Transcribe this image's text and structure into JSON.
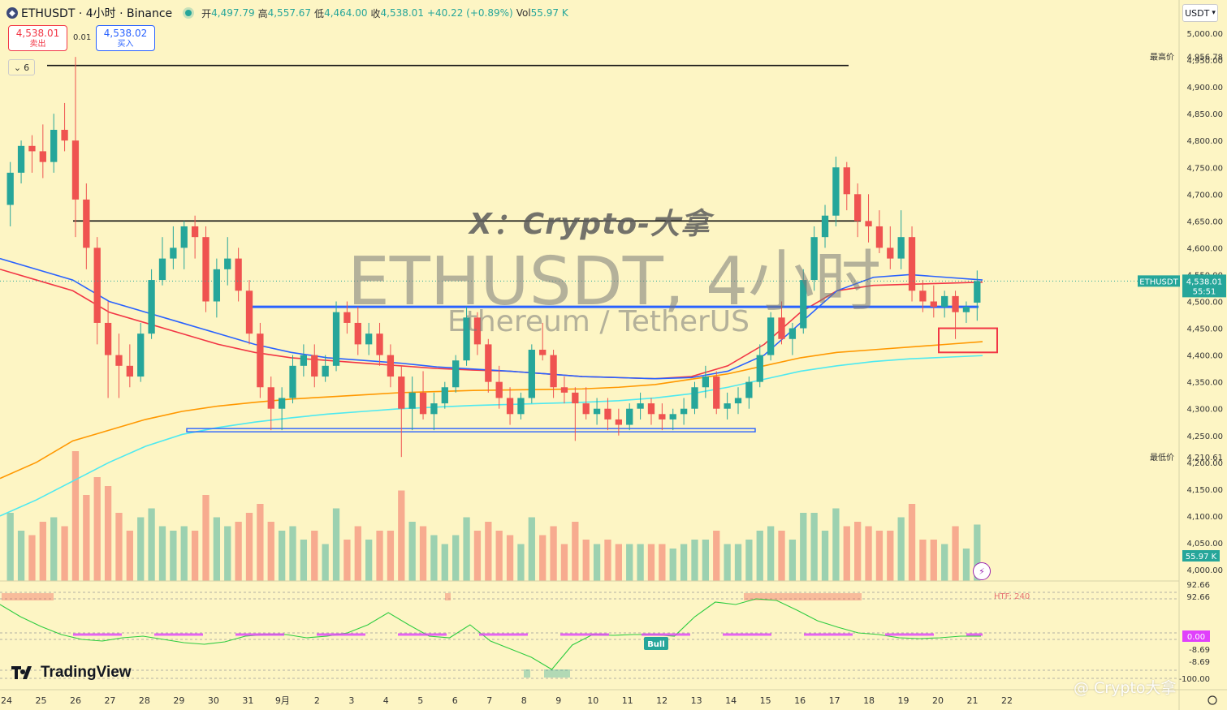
{
  "header": {
    "symbol_icon": "ethereum-logo-icon",
    "title": "ETHUSDT · 4小时 · Binance",
    "open_label": "开",
    "open": "4,497.79",
    "high_label": "高",
    "high": "4,557.67",
    "low_label": "低",
    "low": "4,464.00",
    "close_label": "收",
    "close": "4,538.01",
    "change": "+40.22 (+0.89%)",
    "vol_label": "Vol",
    "vol": "55.97 K"
  },
  "trade": {
    "sell_price": "4,538.01",
    "sell_label": "卖出",
    "spread": "0.01",
    "buy_price": "4,538.02",
    "buy_label": "买入"
  },
  "indicator_collapse": {
    "count": "6",
    "icon": "chevron-down-icon"
  },
  "currency": "USDT",
  "price_axis": {
    "ticks": [
      "5,000.00",
      "4,950.00",
      "4,900.00",
      "4,850.00",
      "4,800.00",
      "4,750.00",
      "4,700.00",
      "4,650.00",
      "4,600.00",
      "4,550.00",
      "4,500.00",
      "4,450.00",
      "4,400.00",
      "4,350.00",
      "4,300.00",
      "4,250.00",
      "4,200.00",
      "4,150.00",
      "4,100.00",
      "4,050.00",
      "4,000.00"
    ],
    "high_label": "最高价",
    "high_value": "4,956.78",
    "low_label": "最低价",
    "low_value": "4,210.61",
    "last_symbol": "ETHUSDT",
    "last_price": "4,538.01",
    "countdown": "55:51",
    "volume_badge": "55.97 K"
  },
  "oscillator": {
    "top_ticks": [
      "92.66",
      "92.66"
    ],
    "htf_label": "HTF: 240",
    "zero_badge": "0.00",
    "bottom_ticks": [
      "-8.69",
      "-8.69",
      "-100.00"
    ],
    "bull_label": "Bull"
  },
  "time_axis": [
    "24",
    "25",
    "26",
    "27",
    "28",
    "29",
    "30",
    "31",
    "9月",
    "2",
    "3",
    "4",
    "5",
    "6",
    "7",
    "8",
    "9",
    "10",
    "11",
    "12",
    "13",
    "14",
    "15",
    "16",
    "17",
    "18",
    "19",
    "20",
    "21",
    "22"
  ],
  "watermark": {
    "tag": "X：Crypto-大拿",
    "symbol": "ETHUSDT, 4小时",
    "description": "Ethereum / TetherUS",
    "corner": "@ Crypto大拿"
  },
  "logo": "TradingView",
  "colors": {
    "up": "#26a69a",
    "down": "#ef5350",
    "ema_fast": "#f23645",
    "ema_mid": "#2962ff",
    "ema_slow": "#ff9800",
    "ema_long": "#4ee9f0",
    "background": "#fdf5c4"
  },
  "chart_data": {
    "type": "candlestick",
    "timeframe": "4h",
    "ylim": [
      4000,
      5000
    ],
    "ohlc": [
      [
        4680,
        4760,
        4640,
        4740
      ],
      [
        4740,
        4800,
        4720,
        4790
      ],
      [
        4790,
        4810,
        4740,
        4780
      ],
      [
        4780,
        4830,
        4730,
        4760
      ],
      [
        4760,
        4850,
        4740,
        4820
      ],
      [
        4820,
        4870,
        4780,
        4800
      ],
      [
        4800,
        4956,
        4620,
        4690
      ],
      [
        4690,
        4720,
        4560,
        4600
      ],
      [
        4600,
        4620,
        4420,
        4460
      ],
      [
        4460,
        4500,
        4320,
        4400
      ],
      [
        4400,
        4440,
        4320,
        4380
      ],
      [
        4380,
        4420,
        4340,
        4360
      ],
      [
        4360,
        4460,
        4350,
        4440
      ],
      [
        4440,
        4560,
        4430,
        4540
      ],
      [
        4540,
        4620,
        4530,
        4580
      ],
      [
        4580,
        4640,
        4560,
        4600
      ],
      [
        4600,
        4650,
        4560,
        4640
      ],
      [
        4640,
        4660,
        4580,
        4620
      ],
      [
        4620,
        4640,
        4480,
        4500
      ],
      [
        4500,
        4580,
        4470,
        4560
      ],
      [
        4560,
        4620,
        4530,
        4580
      ],
      [
        4580,
        4600,
        4500,
        4520
      ],
      [
        4520,
        4540,
        4420,
        4440
      ],
      [
        4440,
        4460,
        4320,
        4340
      ],
      [
        4340,
        4360,
        4260,
        4300
      ],
      [
        4300,
        4340,
        4260,
        4320
      ],
      [
        4320,
        4400,
        4310,
        4380
      ],
      [
        4380,
        4420,
        4360,
        4400
      ],
      [
        4400,
        4420,
        4340,
        4360
      ],
      [
        4360,
        4400,
        4350,
        4380
      ],
      [
        4380,
        4500,
        4370,
        4480
      ],
      [
        4480,
        4500,
        4440,
        4460
      ],
      [
        4460,
        4490,
        4400,
        4420
      ],
      [
        4420,
        4460,
        4400,
        4440
      ],
      [
        4440,
        4460,
        4380,
        4400
      ],
      [
        4400,
        4420,
        4340,
        4360
      ],
      [
        4360,
        4380,
        4210,
        4300
      ],
      [
        4300,
        4360,
        4260,
        4330
      ],
      [
        4330,
        4370,
        4280,
        4290
      ],
      [
        4290,
        4330,
        4260,
        4310
      ],
      [
        4310,
        4350,
        4300,
        4340
      ],
      [
        4340,
        4400,
        4330,
        4390
      ],
      [
        4390,
        4490,
        4380,
        4470
      ],
      [
        4470,
        4480,
        4400,
        4420
      ],
      [
        4420,
        4430,
        4330,
        4350
      ],
      [
        4350,
        4380,
        4300,
        4320
      ],
      [
        4320,
        4340,
        4270,
        4290
      ],
      [
        4290,
        4330,
        4280,
        4320
      ],
      [
        4320,
        4420,
        4310,
        4410
      ],
      [
        4410,
        4460,
        4390,
        4400
      ],
      [
        4400,
        4410,
        4320,
        4340
      ],
      [
        4340,
        4360,
        4310,
        4330
      ],
      [
        4330,
        4340,
        4240,
        4310
      ],
      [
        4310,
        4340,
        4280,
        4290
      ],
      [
        4290,
        4320,
        4270,
        4300
      ],
      [
        4300,
        4320,
        4260,
        4280
      ],
      [
        4280,
        4300,
        4250,
        4270
      ],
      [
        4270,
        4310,
        4260,
        4300
      ],
      [
        4300,
        4330,
        4280,
        4310
      ],
      [
        4310,
        4320,
        4270,
        4290
      ],
      [
        4290,
        4310,
        4260,
        4280
      ],
      [
        4280,
        4300,
        4260,
        4290
      ],
      [
        4290,
        4320,
        4270,
        4300
      ],
      [
        4300,
        4350,
        4290,
        4340
      ],
      [
        4340,
        4380,
        4320,
        4360
      ],
      [
        4360,
        4370,
        4290,
        4300
      ],
      [
        4300,
        4330,
        4280,
        4310
      ],
      [
        4310,
        4340,
        4290,
        4320
      ],
      [
        4320,
        4360,
        4300,
        4350
      ],
      [
        4350,
        4420,
        4340,
        4400
      ],
      [
        4400,
        4480,
        4390,
        4470
      ],
      [
        4470,
        4500,
        4420,
        4430
      ],
      [
        4430,
        4460,
        4400,
        4450
      ],
      [
        4450,
        4560,
        4440,
        4540
      ],
      [
        4540,
        4640,
        4520,
        4620
      ],
      [
        4620,
        4680,
        4600,
        4660
      ],
      [
        4660,
        4770,
        4640,
        4750
      ],
      [
        4750,
        4760,
        4670,
        4700
      ],
      [
        4700,
        4720,
        4620,
        4650
      ],
      [
        4650,
        4700,
        4610,
        4640
      ],
      [
        4640,
        4670,
        4590,
        4600
      ],
      [
        4600,
        4640,
        4560,
        4580
      ],
      [
        4580,
        4670,
        4560,
        4620
      ],
      [
        4620,
        4640,
        4500,
        4520
      ],
      [
        4520,
        4540,
        4480,
        4500
      ],
      [
        4500,
        4530,
        4470,
        4490
      ],
      [
        4490,
        4520,
        4470,
        4510
      ],
      [
        4510,
        4520,
        4430,
        4480
      ],
      [
        4480,
        4500,
        4460,
        4490
      ],
      [
        4497.79,
        4557.67,
        4464.0,
        4538.01
      ]
    ],
    "ema": [
      {
        "name": "EMA fast",
        "color": "#f23645",
        "values": [
          4560,
          4540,
          4520,
          4480,
          4460,
          4440,
          4420,
          4405,
          4395,
          4390,
          4385,
          4380,
          4375,
          4372,
          4370,
          4365,
          4360,
          4358,
          4356,
          4360,
          4380,
          4420,
          4480,
          4520,
          4530,
          4532,
          4534,
          4536
        ]
      },
      {
        "name": "EMA mid",
        "color": "#2962ff",
        "values": [
          4580,
          4560,
          4540,
          4500,
          4480,
          4460,
          4440,
          4420,
          4405,
          4395,
          4390,
          4385,
          4378,
          4374,
          4370,
          4365,
          4360,
          4358,
          4356,
          4358,
          4370,
          4400,
          4460,
          4520,
          4545,
          4550,
          4545,
          4540
        ]
      },
      {
        "name": "EMA slow",
        "color": "#ff9800",
        "values": [
          4170,
          4200,
          4240,
          4260,
          4280,
          4295,
          4305,
          4312,
          4318,
          4322,
          4326,
          4330,
          4332,
          4334,
          4335,
          4336,
          4337,
          4340,
          4345,
          4355,
          4365,
          4380,
          4395,
          4405,
          4410,
          4415,
          4420,
          4425
        ]
      },
      {
        "name": "EMA long",
        "color": "#4ee9f0",
        "values": [
          4100,
          4130,
          4165,
          4200,
          4230,
          4252,
          4265,
          4275,
          4283,
          4290,
          4295,
          4300,
          4303,
          4306,
          4308,
          4310,
          4312,
          4315,
          4320,
          4328,
          4340,
          4355,
          4370,
          4380,
          4388,
          4393,
          4396,
          4399
        ]
      }
    ],
    "horizontal_levels": [
      4940,
      4650,
      4490,
      4260
    ],
    "highlight_box": [
      4405,
      4450
    ],
    "volume_max_label": "55.97 K"
  }
}
